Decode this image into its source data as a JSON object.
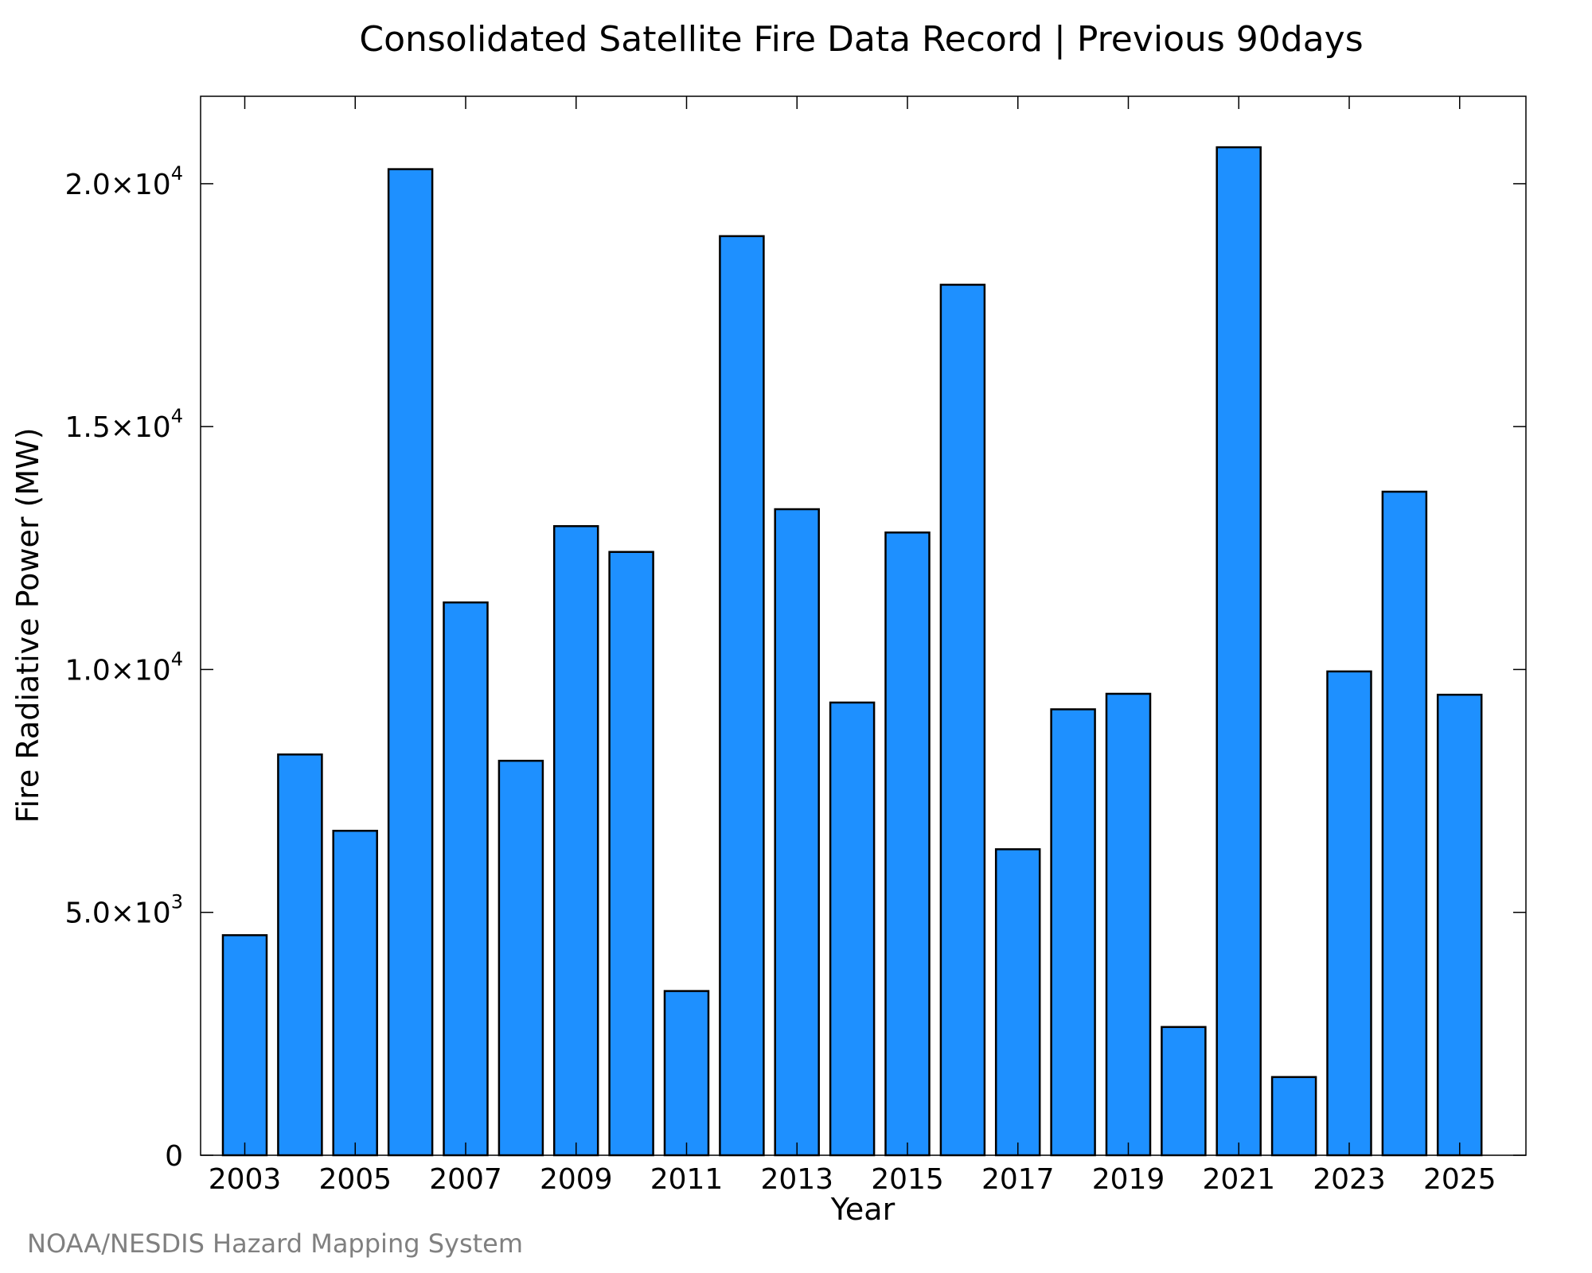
{
  "chart_data": {
    "type": "bar",
    "title": "Consolidated Satellite Fire Data Record | Previous 90days",
    "xlabel": "Year",
    "ylabel": "Fire Radiative Power (MW)",
    "x_tick_labels": [
      "2003",
      "2005",
      "2007",
      "2009",
      "2011",
      "2013",
      "2015",
      "2017",
      "2019",
      "2021",
      "2023",
      "2025"
    ],
    "y_ticks": [
      {
        "value": 0,
        "mantissa": "0",
        "exponent": ""
      },
      {
        "value": 5000,
        "mantissa": "5.0×10",
        "exponent": "3"
      },
      {
        "value": 10000,
        "mantissa": "1.0×10",
        "exponent": "4"
      },
      {
        "value": 15000,
        "mantissa": "1.5×10",
        "exponent": "4"
      },
      {
        "value": 20000,
        "mantissa": "2.0×10",
        "exponent": "4"
      }
    ],
    "ylim": [
      0,
      21800
    ],
    "xlim": [
      2002.2,
      2026.2
    ],
    "categories": [
      2003,
      2004,
      2005,
      2006,
      2007,
      2008,
      2009,
      2010,
      2011,
      2012,
      2013,
      2014,
      2015,
      2016,
      2017,
      2018,
      2019,
      2020,
      2021,
      2022,
      2023,
      2024,
      2025
    ],
    "values": [
      4530,
      8250,
      6680,
      20300,
      11380,
      8120,
      12950,
      12420,
      3380,
      18920,
      13300,
      9320,
      12820,
      17920,
      6300,
      9180,
      9500,
      2640,
      20750,
      1610,
      9960,
      13660,
      9480
    ],
    "bar_color": "#1e90ff",
    "edge_color": "#000000",
    "grid": false,
    "legend": "none",
    "credit": "NOAA/NESDIS Hazard Mapping System",
    "credit_color": "#808080"
  }
}
